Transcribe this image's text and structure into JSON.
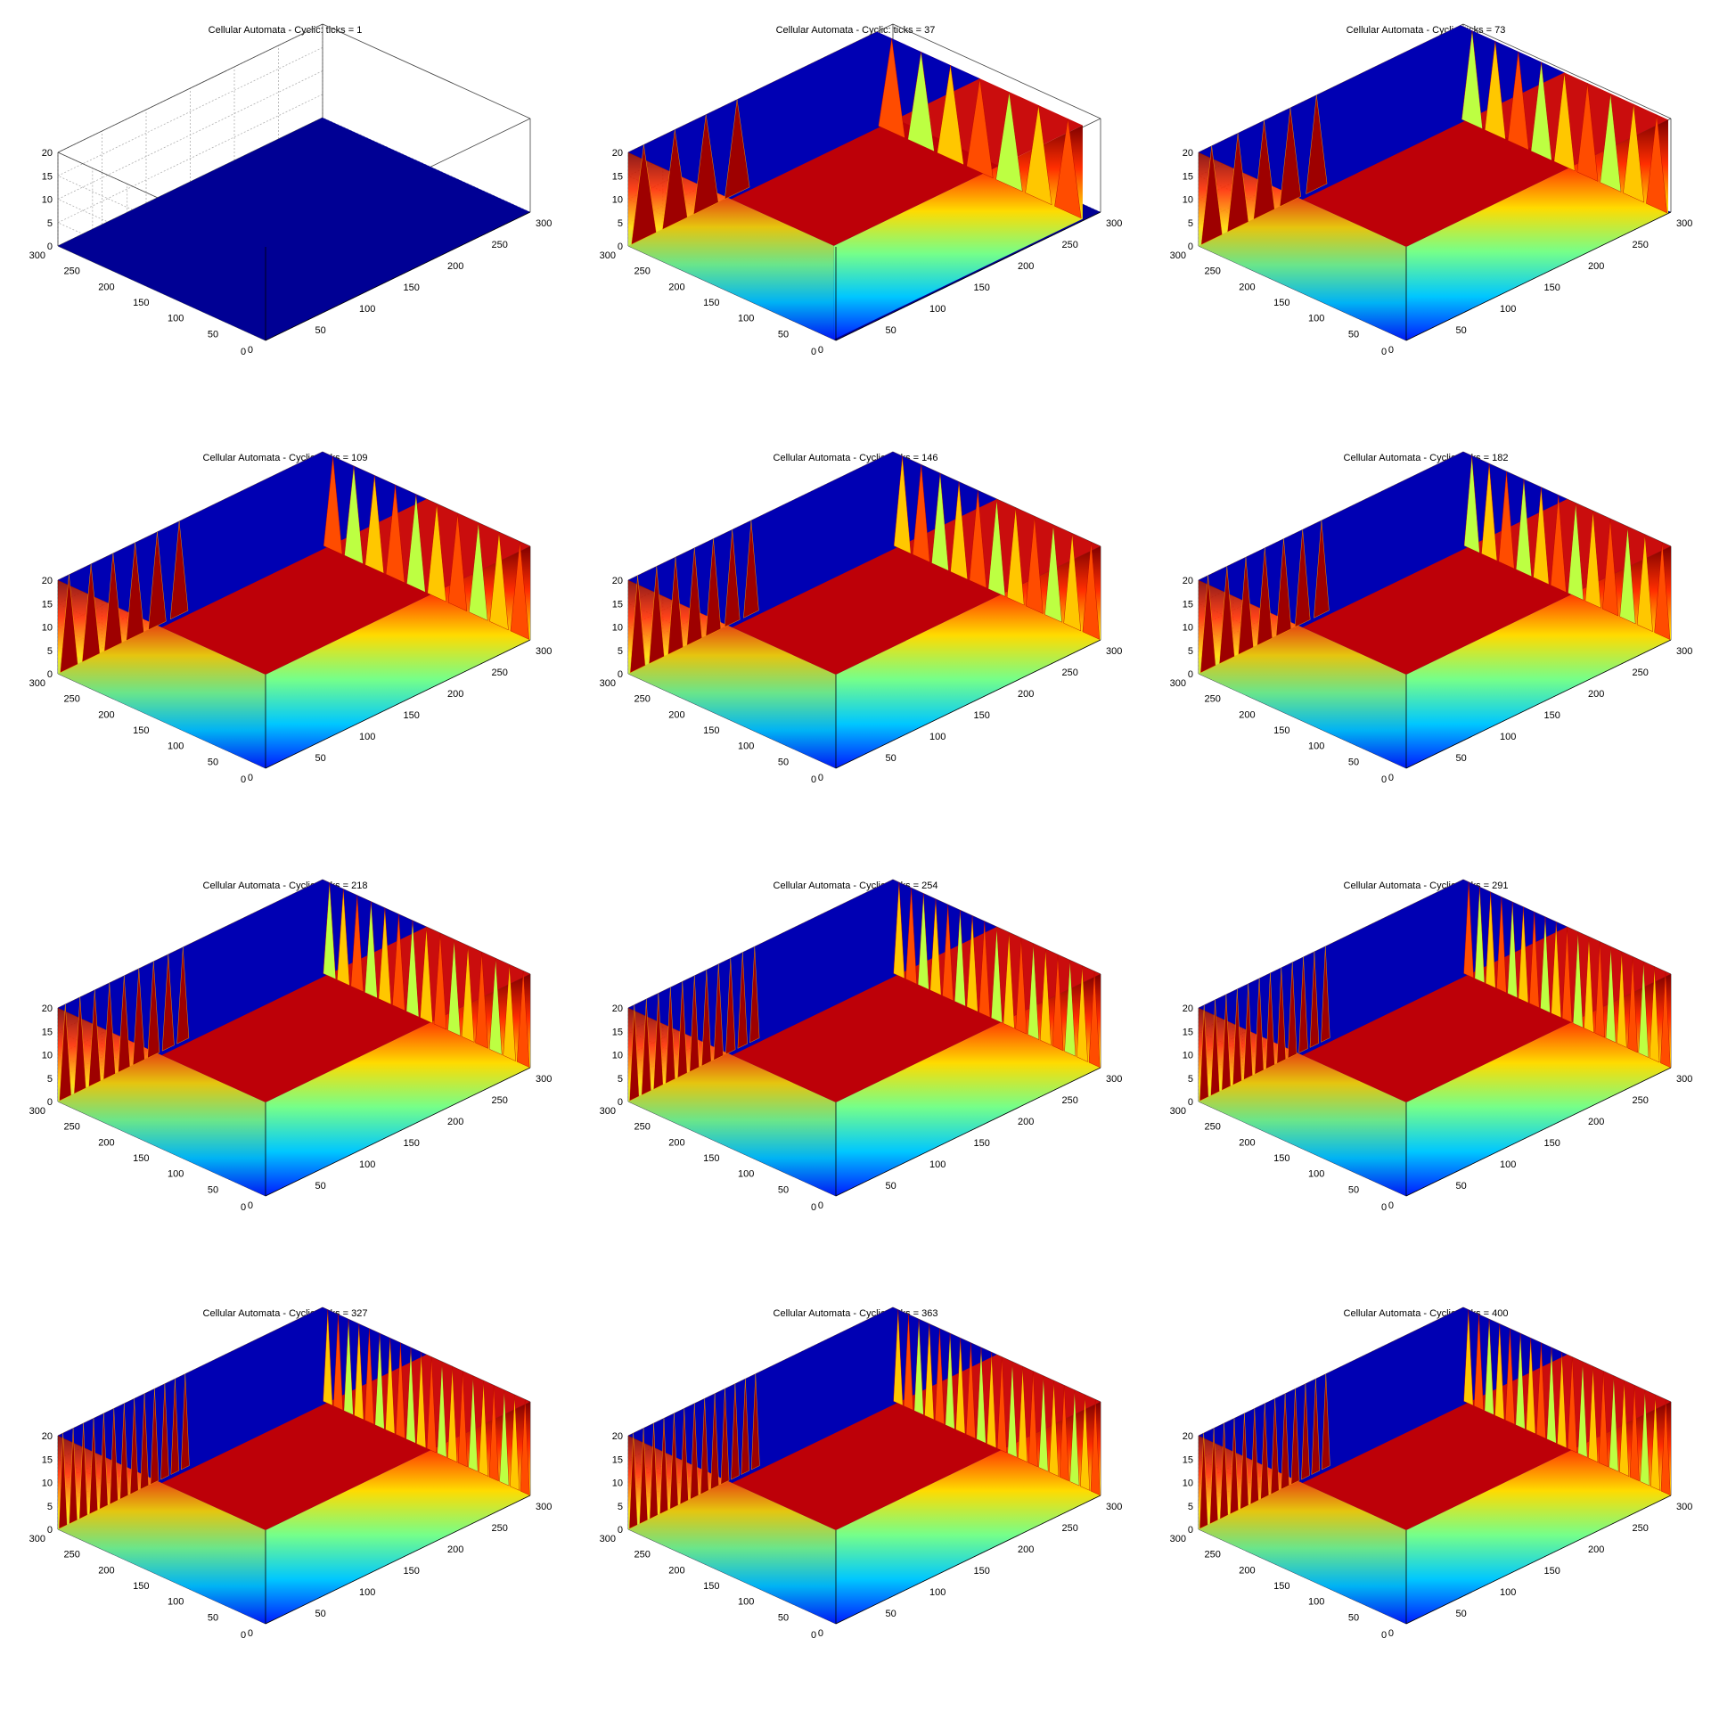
{
  "figure": {
    "colormap": "jet",
    "background": "#ffffff",
    "axis_color": "#000000",
    "grid_color": "#b0b0b0"
  },
  "chart_data": [
    {
      "type": "surface",
      "title": "Cellular Automata - Cyclic: ticks = 1",
      "tick": 1,
      "extent": 0.0,
      "xlim": [
        0,
        300
      ],
      "ylim": [
        0,
        300
      ],
      "zlim": [
        0,
        20
      ],
      "xticks": [
        "0",
        "50",
        "100",
        "150",
        "200",
        "250",
        "300"
      ],
      "yticks": [
        "0",
        "50",
        "100",
        "150",
        "200",
        "250",
        "300"
      ],
      "zticks": [
        "0",
        "5",
        "10",
        "15",
        "20"
      ],
      "grid": true
    },
    {
      "type": "surface",
      "title": "Cellular Automata - Cyclic: ticks = 37",
      "tick": 37,
      "extent": 0.08,
      "xlim": [
        0,
        300
      ],
      "ylim": [
        0,
        300
      ],
      "zlim": [
        0,
        20
      ],
      "xticks": [
        "0",
        "50",
        "100",
        "150",
        "200",
        "250",
        "300"
      ],
      "yticks": [
        "0",
        "50",
        "100",
        "150",
        "200",
        "250",
        "300"
      ],
      "zticks": [
        "0",
        "5",
        "10",
        "15",
        "20"
      ],
      "grid": true
    },
    {
      "type": "surface",
      "title": "Cellular Automata - Cyclic: ticks = 73",
      "tick": 73,
      "extent": 0.18,
      "xlim": [
        0,
        300
      ],
      "ylim": [
        0,
        300
      ],
      "zlim": [
        0,
        20
      ],
      "xticks": [
        "0",
        "50",
        "100",
        "150",
        "200",
        "250",
        "300"
      ],
      "yticks": [
        "0",
        "50",
        "100",
        "150",
        "200",
        "250",
        "300"
      ],
      "zticks": [
        "0",
        "5",
        "10",
        "15",
        "20"
      ],
      "grid": true
    },
    {
      "type": "surface",
      "title": "Cellular Automata - Cyclic: ticks = 109",
      "tick": 109,
      "extent": 0.28,
      "xlim": [
        0,
        300
      ],
      "ylim": [
        0,
        300
      ],
      "zlim": [
        0,
        20
      ],
      "xticks": [
        "0",
        "50",
        "100",
        "150",
        "200",
        "250",
        "300"
      ],
      "yticks": [
        "0",
        "50",
        "100",
        "150",
        "200",
        "250",
        "300"
      ],
      "zticks": [
        "0",
        "5",
        "10",
        "15",
        "20"
      ],
      "grid": true
    },
    {
      "type": "surface",
      "title": "Cellular Automata - Cyclic: ticks = 146",
      "tick": 146,
      "extent": 0.36,
      "xlim": [
        0,
        300
      ],
      "ylim": [
        0,
        300
      ],
      "zlim": [
        0,
        20
      ],
      "xticks": [
        "0",
        "50",
        "100",
        "150",
        "200",
        "250",
        "300"
      ],
      "yticks": [
        "0",
        "50",
        "100",
        "150",
        "200",
        "250",
        "300"
      ],
      "zticks": [
        "0",
        "5",
        "10",
        "15",
        "20"
      ],
      "grid": true
    },
    {
      "type": "surface",
      "title": "Cellular Automata - Cyclic: ticks = 182",
      "tick": 182,
      "extent": 0.44,
      "xlim": [
        0,
        300
      ],
      "ylim": [
        0,
        300
      ],
      "zlim": [
        0,
        20
      ],
      "xticks": [
        "0",
        "50",
        "100",
        "150",
        "200",
        "250",
        "300"
      ],
      "yticks": [
        "0",
        "50",
        "100",
        "150",
        "200",
        "250",
        "300"
      ],
      "zticks": [
        "0",
        "5",
        "10",
        "15",
        "20"
      ],
      "grid": true
    },
    {
      "type": "surface",
      "title": "Cellular Automata - Cyclic: ticks = 218",
      "tick": 218,
      "extent": 0.62,
      "xlim": [
        0,
        300
      ],
      "ylim": [
        0,
        300
      ],
      "zlim": [
        0,
        20
      ],
      "xticks": [
        "0",
        "50",
        "100",
        "150",
        "200",
        "250",
        "300"
      ],
      "yticks": [
        "0",
        "50",
        "100",
        "150",
        "200",
        "250",
        "300"
      ],
      "zticks": [
        "0",
        "5",
        "10",
        "15",
        "20"
      ],
      "grid": true
    },
    {
      "type": "surface",
      "title": "Cellular Automata - Cyclic: ticks = 254",
      "tick": 254,
      "extent": 0.78,
      "xlim": [
        0,
        300
      ],
      "ylim": [
        0,
        300
      ],
      "zlim": [
        0,
        20
      ],
      "xticks": [
        "0",
        "50",
        "100",
        "150",
        "200",
        "250",
        "300"
      ],
      "yticks": [
        "0",
        "50",
        "100",
        "150",
        "200",
        "250",
        "300"
      ],
      "zticks": [
        "0",
        "5",
        "10",
        "15",
        "20"
      ],
      "grid": true
    },
    {
      "type": "surface",
      "title": "Cellular Automata - Cyclic: ticks = 291",
      "tick": 291,
      "extent": 0.92,
      "xlim": [
        0,
        300
      ],
      "ylim": [
        0,
        300
      ],
      "zlim": [
        0,
        20
      ],
      "xticks": [
        "0",
        "50",
        "100",
        "150",
        "200",
        "250",
        "300"
      ],
      "yticks": [
        "0",
        "50",
        "100",
        "150",
        "200",
        "250",
        "300"
      ],
      "zticks": [
        "0",
        "5",
        "10",
        "15",
        "20"
      ],
      "grid": true
    },
    {
      "type": "surface",
      "title": "Cellular Automata - Cyclic: ticks = 327",
      "tick": 327,
      "extent": 1.0,
      "xlim": [
        0,
        300
      ],
      "ylim": [
        0,
        300
      ],
      "zlim": [
        0,
        20
      ],
      "xticks": [
        "0",
        "50",
        "100",
        "150",
        "200",
        "250",
        "300"
      ],
      "yticks": [
        "0",
        "50",
        "100",
        "150",
        "200",
        "250",
        "300"
      ],
      "zticks": [
        "0",
        "5",
        "10",
        "15",
        "20"
      ],
      "grid": true
    },
    {
      "type": "surface",
      "title": "Cellular Automata - Cyclic: ticks = 363",
      "tick": 363,
      "extent": 1.0,
      "xlim": [
        0,
        300
      ],
      "ylim": [
        0,
        300
      ],
      "zlim": [
        0,
        20
      ],
      "xticks": [
        "0",
        "50",
        "100",
        "150",
        "200",
        "250",
        "300"
      ],
      "yticks": [
        "0",
        "50",
        "100",
        "150",
        "200",
        "250",
        "300"
      ],
      "zticks": [
        "0",
        "5",
        "10",
        "15",
        "20"
      ],
      "grid": true
    },
    {
      "type": "surface",
      "title": "Cellular Automata - Cyclic: ticks = 400",
      "tick": 400,
      "extent": 1.0,
      "xlim": [
        0,
        300
      ],
      "ylim": [
        0,
        300
      ],
      "zlim": [
        0,
        20
      ],
      "xticks": [
        "0",
        "50",
        "100",
        "150",
        "200",
        "250",
        "300"
      ],
      "yticks": [
        "0",
        "50",
        "100",
        "150",
        "200",
        "250",
        "300"
      ],
      "zticks": [
        "0",
        "5",
        "10",
        "15",
        "20"
      ],
      "grid": true
    }
  ]
}
